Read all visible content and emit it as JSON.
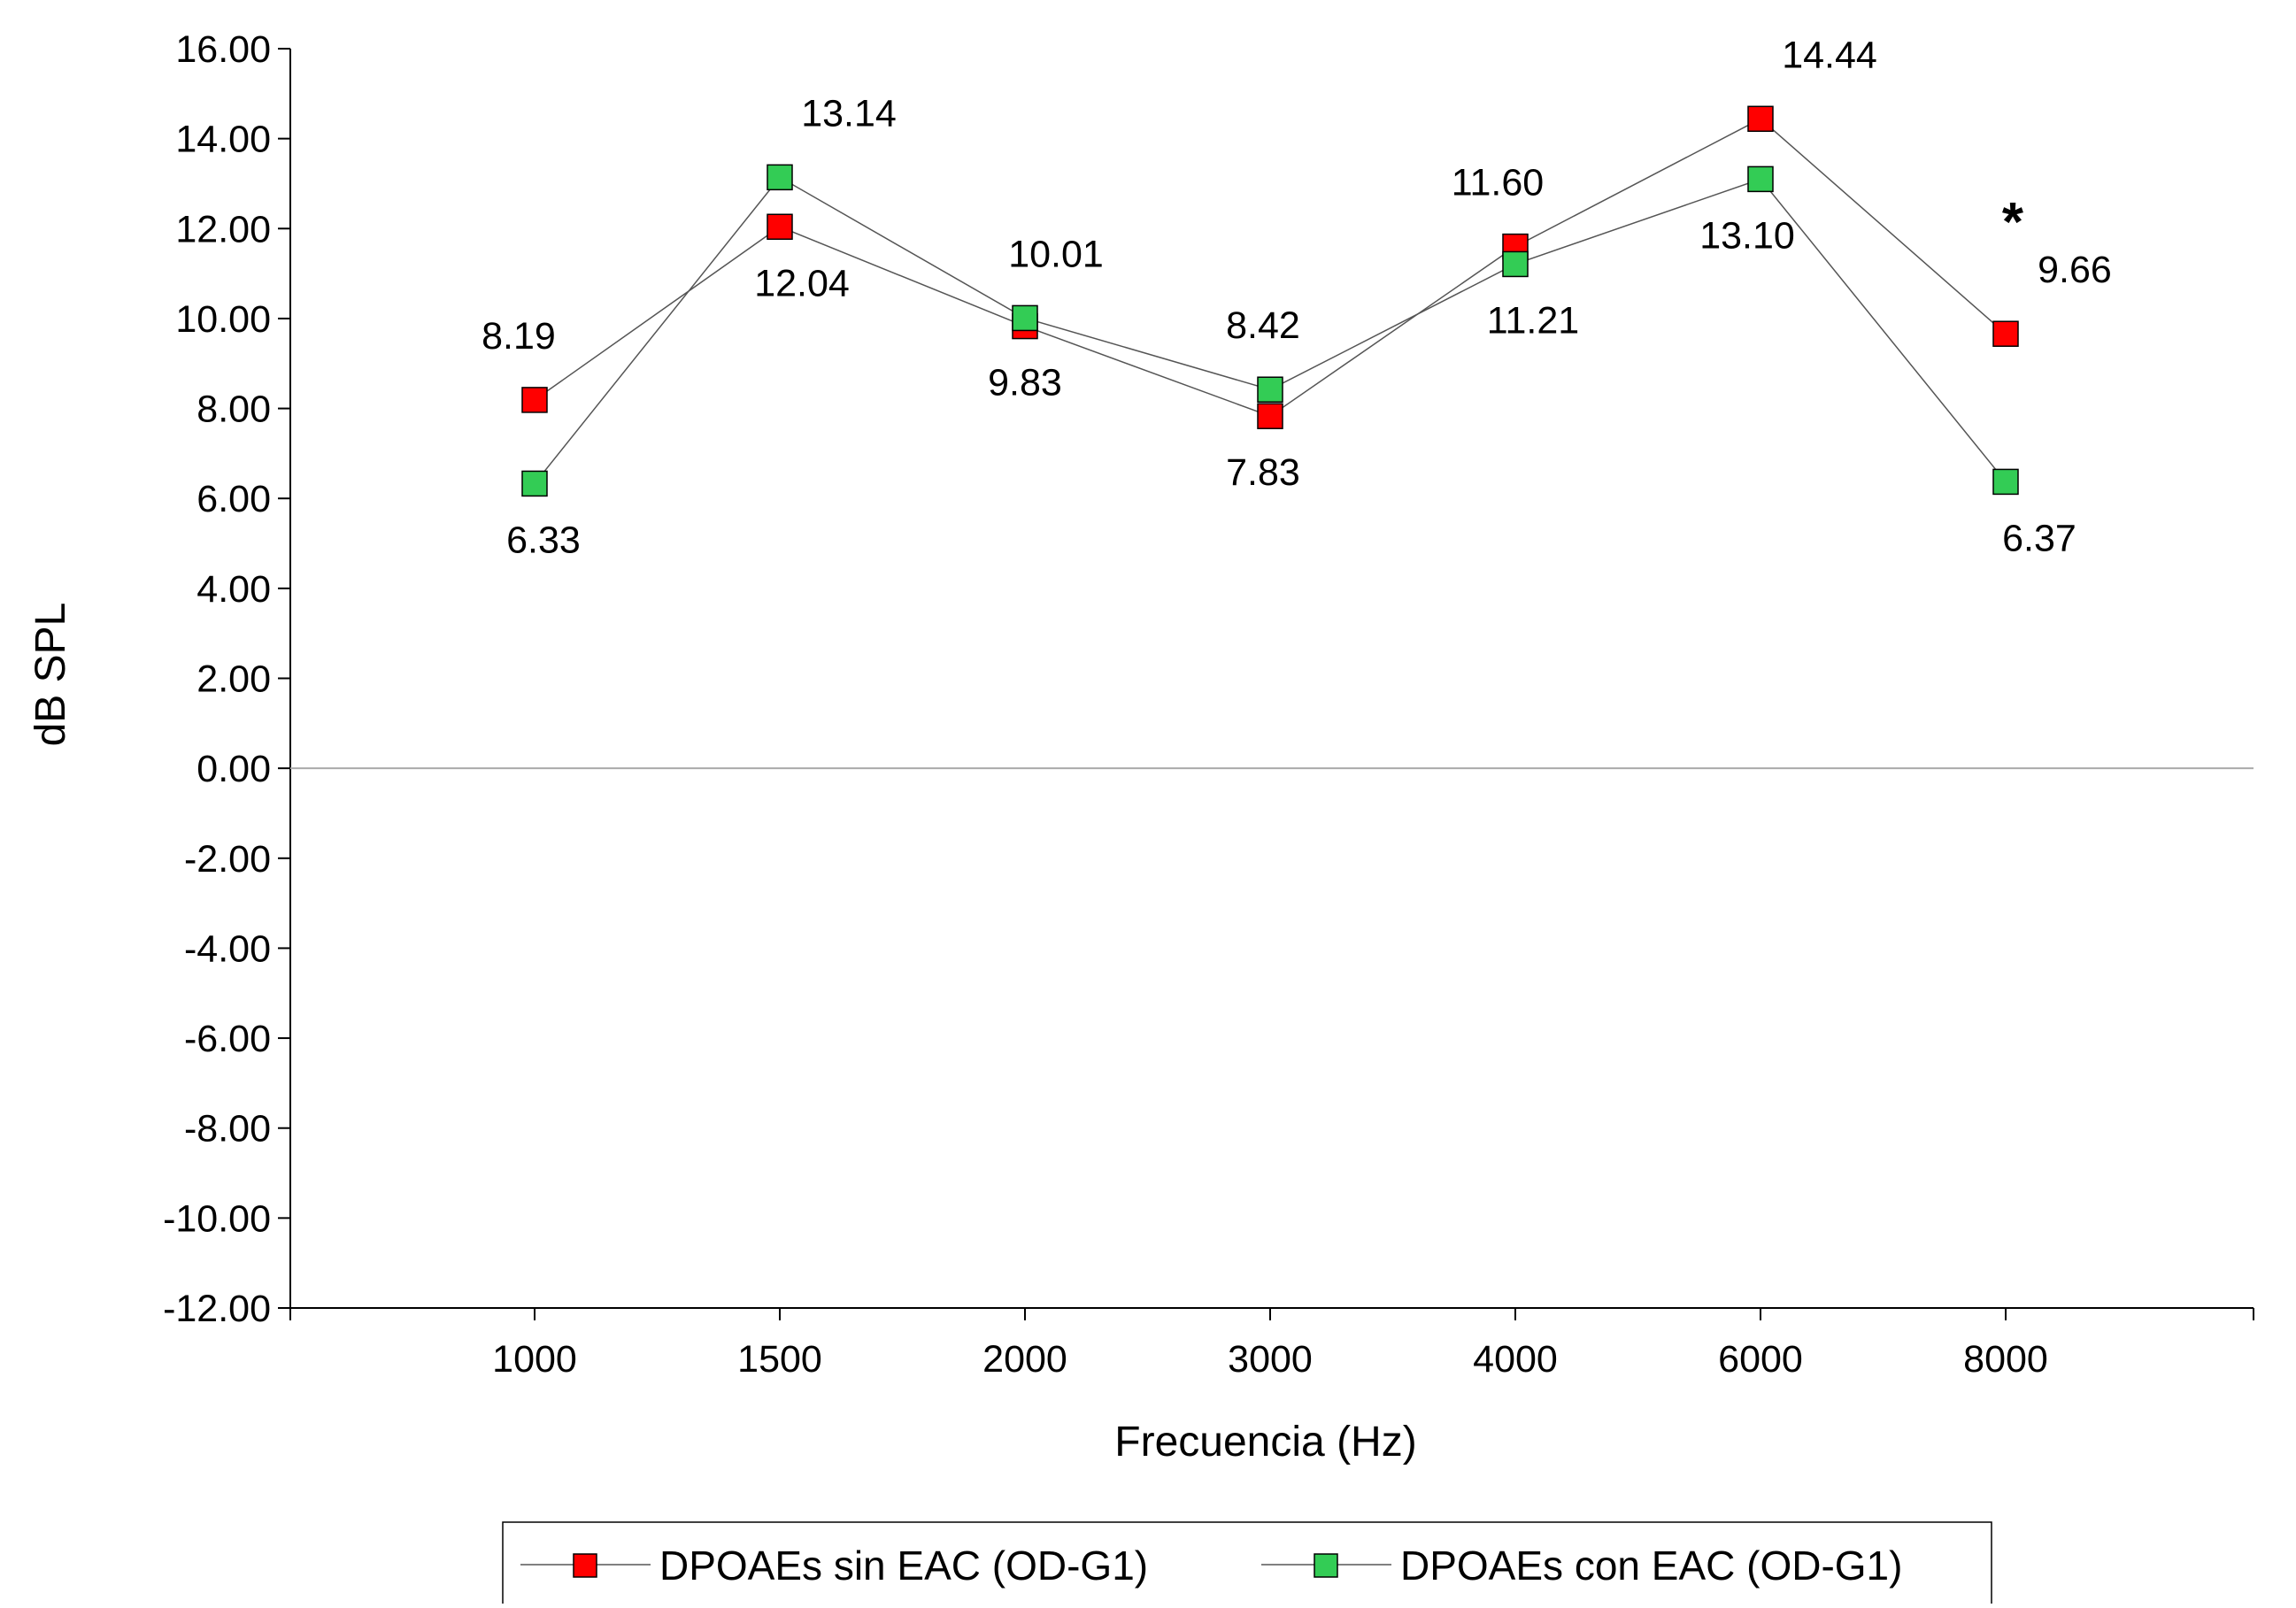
{
  "chart_data": {
    "type": "line",
    "title": "",
    "xlabel": "Frecuencia (Hz)",
    "ylabel": "dB SPL",
    "categories": [
      "1000",
      "1500",
      "2000",
      "3000",
      "4000",
      "6000",
      "8000"
    ],
    "ylim": [
      -12,
      16
    ],
    "yticks": [
      "16.00",
      "14.00",
      "12.00",
      "10.00",
      "8.00",
      "6.00",
      "4.00",
      "2.00",
      "0.00",
      "-2.00",
      "-4.00",
      "-6.00",
      "-8.00",
      "-10.00",
      "-12.00"
    ],
    "grid": false,
    "legend_position": "bottom",
    "series": [
      {
        "name": "DPOAEs sin EAC (OD-G1)",
        "color": "#ff0000",
        "marker": "square",
        "values": [
          8.19,
          12.04,
          9.83,
          7.83,
          11.6,
          14.44,
          9.66
        ],
        "labels": [
          "8.19",
          "12.04",
          "9.83",
          "7.83",
          "11.60",
          "14.44",
          "9.66"
        ]
      },
      {
        "name": "DPOAEs con EAC (OD-G1)",
        "color": "#33cc55",
        "marker": "square",
        "values": [
          6.33,
          13.14,
          10.01,
          8.42,
          11.21,
          13.1,
          6.37
        ],
        "labels": [
          "6.33",
          "13.14",
          "10.01",
          "8.42",
          "11.21",
          "13.10",
          "6.37"
        ]
      }
    ],
    "annotations": [
      {
        "text": "*",
        "category": "8000"
      }
    ]
  }
}
